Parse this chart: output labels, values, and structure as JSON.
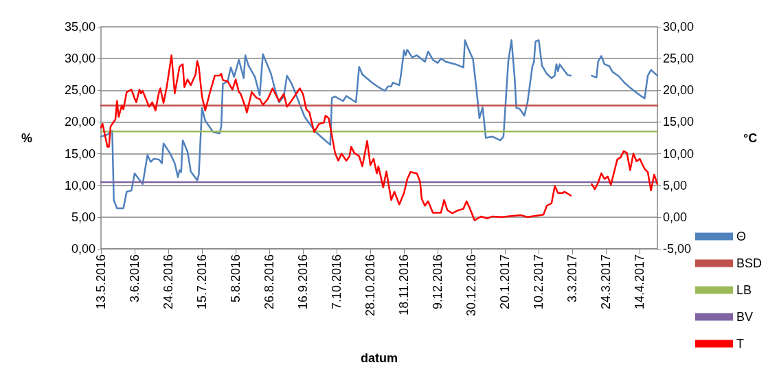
{
  "chart_data": {
    "type": "line",
    "xlabel": "datum",
    "ylabel": "%",
    "y2label": "°C",
    "grid": "y",
    "legend": "right",
    "xlim": [
      "2016-05-13",
      "2017-04-25"
    ],
    "xticks": [
      {
        "value": "2016-05-13",
        "label": "13.5.2016"
      },
      {
        "value": "2016-06-03",
        "label": "3.6.2016"
      },
      {
        "value": "2016-06-24",
        "label": "24.6.2016"
      },
      {
        "value": "2016-07-15",
        "label": "15.7.2016"
      },
      {
        "value": "2016-08-05",
        "label": "5.8.2016"
      },
      {
        "value": "2016-08-26",
        "label": "26.8.2016"
      },
      {
        "value": "2016-09-16",
        "label": "16.9.2016"
      },
      {
        "value": "2016-10-07",
        "label": "7.10.2016"
      },
      {
        "value": "2016-10-28",
        "label": "28.10.2016"
      },
      {
        "value": "2016-11-18",
        "label": "18.11.2016"
      },
      {
        "value": "2016-12-09",
        "label": "9.12.2016"
      },
      {
        "value": "2016-12-30",
        "label": "30.12.2016"
      },
      {
        "value": "2017-01-20",
        "label": "20.1.2017"
      },
      {
        "value": "2017-02-10",
        "label": "10.2.2017"
      },
      {
        "value": "2017-03-03",
        "label": "3.3.2017"
      },
      {
        "value": "2017-03-24",
        "label": "24.3.2017"
      },
      {
        "value": "2017-04-14",
        "label": "14.4.2017"
      }
    ],
    "ylim": [
      0,
      35
    ],
    "yticks": [
      {
        "value": 0,
        "label": "0,00"
      },
      {
        "value": 5,
        "label": "5,00"
      },
      {
        "value": 10,
        "label": "10,00"
      },
      {
        "value": 15,
        "label": "15,00"
      },
      {
        "value": 20,
        "label": "20,00"
      },
      {
        "value": 25,
        "label": "25,00"
      },
      {
        "value": 30,
        "label": "30,00"
      },
      {
        "value": 35,
        "label": "35,00"
      }
    ],
    "y2lim": [
      -5,
      30
    ],
    "y2ticks": [
      {
        "value": -5,
        "label": "-5,00"
      },
      {
        "value": 0,
        "label": "0,00"
      },
      {
        "value": 5,
        "label": "5,00"
      },
      {
        "value": 10,
        "label": "10,00"
      },
      {
        "value": 15,
        "label": "15,00"
      },
      {
        "value": 20,
        "label": "20,00"
      },
      {
        "value": 25,
        "label": "25,00"
      },
      {
        "value": 30,
        "label": "30,00"
      }
    ],
    "series": [
      {
        "name": "Θ",
        "color": "#4f81bd",
        "x": [
          "2016-05-13",
          "2016-05-17",
          "2016-05-20",
          "2016-05-21",
          "2016-05-23",
          "2016-05-27",
          "2016-05-29",
          "2016-06-01",
          "2016-06-03",
          "2016-06-08",
          "2016-06-11",
          "2016-06-13",
          "2016-06-15",
          "2016-06-18",
          "2016-06-20",
          "2016-06-21",
          "2016-06-25",
          "2016-06-28",
          "2016-06-30",
          "2016-07-01",
          "2016-07-02",
          "2016-07-03",
          "2016-07-06",
          "2016-07-08",
          "2016-07-12",
          "2016-07-13",
          "2016-07-15",
          "2016-07-17",
          "2016-07-22",
          "2016-07-26",
          "2016-07-27",
          "2016-07-28",
          "2016-07-31",
          "2016-08-02",
          "2016-08-04",
          "2016-08-07",
          "2016-08-10",
          "2016-08-11",
          "2016-08-13",
          "2016-08-17",
          "2016-08-20",
          "2016-08-22",
          "2016-08-27",
          "2016-08-30",
          "2016-09-01",
          "2016-09-04",
          "2016-09-06",
          "2016-09-09",
          "2016-09-13",
          "2016-09-17",
          "2016-09-24",
          "2016-09-28",
          "2016-10-03",
          "2016-10-04",
          "2016-10-06",
          "2016-10-11",
          "2016-10-13",
          "2016-10-19",
          "2016-10-21",
          "2016-10-23",
          "2016-10-29",
          "2016-11-02",
          "2016-11-06",
          "2016-11-08",
          "2016-11-10",
          "2016-11-11",
          "2016-11-15",
          "2016-11-16",
          "2016-11-18",
          "2016-11-19",
          "2016-11-20",
          "2016-11-23",
          "2016-11-26",
          "2016-12-01",
          "2016-12-03",
          "2016-12-06",
          "2016-12-09",
          "2016-12-11",
          "2016-12-14",
          "2016-12-20",
          "2016-12-25",
          "2016-12-26",
          "2016-12-28",
          "2016-12-31",
          "2017-01-02",
          "2017-01-04",
          "2017-01-06",
          "2017-01-08",
          "2017-01-12",
          "2017-01-17",
          "2017-01-19",
          "2017-01-22",
          "2017-01-24",
          "2017-01-26",
          "2017-01-27",
          "2017-01-29",
          "2017-02-01",
          "2017-02-03",
          "2017-02-06",
          "2017-02-07",
          "2017-02-08",
          "2017-02-10",
          "2017-02-12",
          "2017-02-15",
          "2017-02-18",
          "2017-02-20",
          "2017-02-21",
          "2017-02-22",
          "2017-02-23",
          "2017-02-28",
          "2017-03-02",
          "2017-03-09",
          "2017-03-15",
          "2017-03-18",
          "2017-03-19",
          "2017-03-21",
          "2017-03-23",
          "2017-03-26",
          "2017-03-28",
          "2017-04-01",
          "2017-04-04",
          "2017-04-08",
          "2017-04-12",
          "2017-04-17",
          "2017-04-19",
          "2017-04-21",
          "2017-04-25"
        ],
        "values": [
          17.7,
          18.0,
          18.6,
          7.7,
          6.4,
          6.4,
          9.0,
          9.2,
          11.9,
          10.2,
          14.8,
          13.7,
          14.2,
          14.1,
          13.5,
          16.6,
          15.1,
          13.5,
          11.3,
          12.4,
          12.1,
          17.1,
          15.3,
          12.2,
          10.8,
          11.7,
          22.2,
          20.2,
          18.4,
          18.2,
          19.3,
          26.0,
          26.4,
          28.6,
          27.1,
          29.8,
          26.9,
          30.5,
          28.9,
          27.1,
          24.2,
          30.7,
          27.6,
          24.7,
          23.1,
          24.0,
          27.3,
          26.0,
          23.4,
          20.8,
          18.4,
          17.5,
          16.4,
          23.8,
          24.0,
          23.3,
          24.1,
          23.1,
          28.7,
          27.5,
          26.2,
          25.5,
          24.9,
          25.6,
          25.6,
          26.2,
          25.8,
          27.3,
          31.3,
          30.5,
          31.4,
          30.2,
          30.5,
          29.5,
          31.1,
          29.8,
          29.3,
          30.0,
          29.5,
          29.1,
          28.6,
          32.9,
          31.6,
          29.9,
          25.5,
          20.6,
          22.3,
          17.5,
          17.7,
          17.1,
          17.7,
          29.5,
          32.9,
          26.9,
          22.2,
          22.1,
          21.0,
          23.1,
          28.7,
          29.5,
          32.7,
          32.9,
          28.9,
          27.6,
          26.9,
          27.3,
          29.1,
          28.0,
          29.1,
          27.4,
          27.3,
          null,
          27.3,
          27.0,
          29.5,
          30.4,
          29.1,
          28.8,
          27.9,
          27.2,
          26.3,
          25.4,
          24.6,
          23.7,
          27.3,
          28.2,
          27.3
        ]
      },
      {
        "name": "BSD",
        "color": "#c0504d",
        "x": [
          "2016-05-13",
          "2017-04-25"
        ],
        "values": [
          22.6,
          22.6
        ]
      },
      {
        "name": "LB",
        "color": "#9bbb59",
        "x": [
          "2016-05-13",
          "2017-04-25"
        ],
        "values": [
          18.5,
          18.5
        ]
      },
      {
        "name": "BV",
        "color": "#8064a2",
        "x": [
          "2016-05-13",
          "2017-04-25"
        ],
        "values": [
          10.5,
          10.5
        ]
      },
      {
        "name": "T",
        "color": "#ff0000",
        "axis": "y2",
        "x": [
          "2016-05-13",
          "2016-05-14",
          "2016-05-17",
          "2016-05-18",
          "2016-05-19",
          "2016-05-22",
          "2016-05-23",
          "2016-05-24",
          "2016-05-26",
          "2016-05-27",
          "2016-05-29",
          "2016-06-01",
          "2016-06-03",
          "2016-06-04",
          "2016-06-06",
          "2016-06-07",
          "2016-06-08",
          "2016-06-12",
          "2016-06-14",
          "2016-06-16",
          "2016-06-18",
          "2016-06-19",
          "2016-06-21",
          "2016-06-23",
          "2016-06-26",
          "2016-06-28",
          "2016-07-01",
          "2016-07-03",
          "2016-07-04",
          "2016-07-06",
          "2016-07-08",
          "2016-07-11",
          "2016-07-12",
          "2016-07-13",
          "2016-07-15",
          "2016-07-17",
          "2016-07-20",
          "2016-07-23",
          "2016-07-26",
          "2016-07-27",
          "2016-07-28",
          "2016-07-31",
          "2016-08-03",
          "2016-08-05",
          "2016-08-07",
          "2016-08-08",
          "2016-08-11",
          "2016-08-12",
          "2016-08-15",
          "2016-08-18",
          "2016-08-20",
          "2016-08-22",
          "2016-08-25",
          "2016-08-28",
          "2016-09-01",
          "2016-09-04",
          "2016-09-06",
          "2016-09-09",
          "2016-09-14",
          "2016-09-16",
          "2016-09-18",
          "2016-09-20",
          "2016-09-21",
          "2016-09-23",
          "2016-09-26",
          "2016-09-29",
          "2016-09-30",
          "2016-10-02",
          "2016-10-06",
          "2016-10-08",
          "2016-10-10",
          "2016-10-13",
          "2016-10-15",
          "2016-10-16",
          "2016-10-18",
          "2016-10-21",
          "2016-10-23",
          "2016-10-26",
          "2016-10-28",
          "2016-10-30",
          "2016-11-01",
          "2016-11-02",
          "2016-11-05",
          "2016-11-07",
          "2016-11-10",
          "2016-11-12",
          "2016-11-15",
          "2016-11-18",
          "2016-11-20",
          "2016-11-22",
          "2016-11-26",
          "2016-11-28",
          "2016-11-29",
          "2016-12-01",
          "2016-12-03",
          "2016-12-06",
          "2016-12-11",
          "2016-12-13",
          "2016-12-15",
          "2016-12-18",
          "2016-12-22",
          "2016-12-25",
          "2016-12-27",
          "2016-12-29",
          "2017-01-01",
          "2017-01-05",
          "2017-01-09",
          "2017-01-12",
          "2017-01-18",
          "2017-01-25",
          "2017-01-30",
          "2017-02-03",
          "2017-02-08",
          "2017-02-13",
          "2017-02-15",
          "2017-02-18",
          "2017-02-20",
          "2017-02-22",
          "2017-02-25",
          "2017-02-26",
          "2017-03-02",
          "2017-03-09",
          "2017-03-15",
          "2017-03-17",
          "2017-03-19",
          "2017-03-21",
          "2017-03-23",
          "2017-03-25",
          "2017-03-27",
          "2017-03-31",
          "2017-04-02",
          "2017-04-04",
          "2017-04-06",
          "2017-04-08",
          "2017-04-10",
          "2017-04-12",
          "2017-04-14",
          "2017-04-17",
          "2017-04-19",
          "2017-04-21",
          "2017-04-23",
          "2017-04-25"
        ],
        "values": [
          14.1,
          14.7,
          11.1,
          11.1,
          14.3,
          15.4,
          18.3,
          15.8,
          17.6,
          17.0,
          19.7,
          20.1,
          18.7,
          18.1,
          20.1,
          19.5,
          19.9,
          17.4,
          18.1,
          16.8,
          19.5,
          20.3,
          18.0,
          20.5,
          25.5,
          19.5,
          23.7,
          24.1,
          20.5,
          21.7,
          20.8,
          22.5,
          24.6,
          23.7,
          19.0,
          16.8,
          19.7,
          22.3,
          22.3,
          22.6,
          21.6,
          21.4,
          20.1,
          21.7,
          19.7,
          19.5,
          17.4,
          16.5,
          19.7,
          18.8,
          18.6,
          17.7,
          18.6,
          20.3,
          18.3,
          19.4,
          17.4,
          18.4,
          20.3,
          19.4,
          17.0,
          16.5,
          15.4,
          13.4,
          14.7,
          14.9,
          16.0,
          15.6,
          10.1,
          8.9,
          10.0,
          8.9,
          9.6,
          11.1,
          10.1,
          9.6,
          8.0,
          12.0,
          8.2,
          9.2,
          6.9,
          8.0,
          4.7,
          7.2,
          2.7,
          4.0,
          2.0,
          3.8,
          6.0,
          7.1,
          6.9,
          5.6,
          2.9,
          1.8,
          2.5,
          0.7,
          0.7,
          2.7,
          1.1,
          0.6,
          1.1,
          1.3,
          2.5,
          1.4,
          -0.5,
          0.1,
          -0.2,
          0.1,
          0.0,
          0.2,
          0.3,
          0.0,
          0.2,
          0.4,
          1.8,
          2.2,
          4.9,
          3.8,
          3.8,
          4.0,
          3.4,
          null,
          5.2,
          4.4,
          5.4,
          6.9,
          6.0,
          6.4,
          5.1,
          9.1,
          9.4,
          10.4,
          10.1,
          7.4,
          10.0,
          8.8,
          9.2,
          7.6,
          7.1,
          4.2,
          6.7,
          5.2
        ]
      }
    ]
  }
}
